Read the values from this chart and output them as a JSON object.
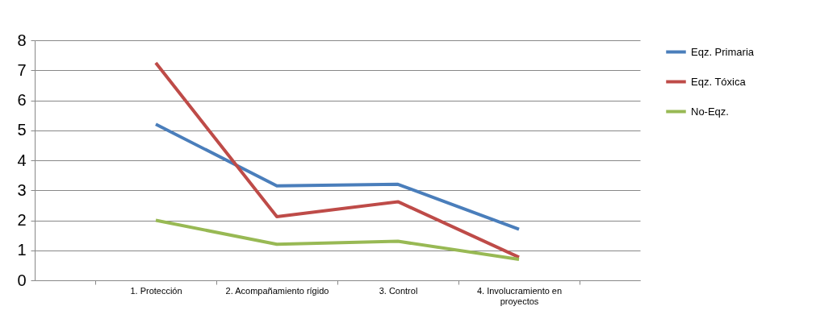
{
  "chart_data": {
    "type": "line",
    "categories": [
      "1. Protección",
      "2. Acompañamiento rígido",
      "3. Control",
      "4. Involucramiento en proyectos"
    ],
    "series": [
      {
        "name": "Eqz. Primaria",
        "color": "#4a7ebb",
        "values": [
          5.2,
          3.15,
          3.2,
          1.7
        ]
      },
      {
        "name": "Eqz. Tóxica",
        "color": "#be4b48",
        "values": [
          7.25,
          2.12,
          2.62,
          0.77
        ]
      },
      {
        "name": "No-Eqz.",
        "color": "#98b954",
        "values": [
          2.0,
          1.2,
          1.3,
          0.7
        ]
      }
    ],
    "ylim": [
      0,
      8
    ],
    "yticks": [
      0,
      1,
      2,
      3,
      4,
      5,
      6,
      7,
      8
    ],
    "grid": "y",
    "legend": "right",
    "marker": "none",
    "line_style": "solid"
  }
}
